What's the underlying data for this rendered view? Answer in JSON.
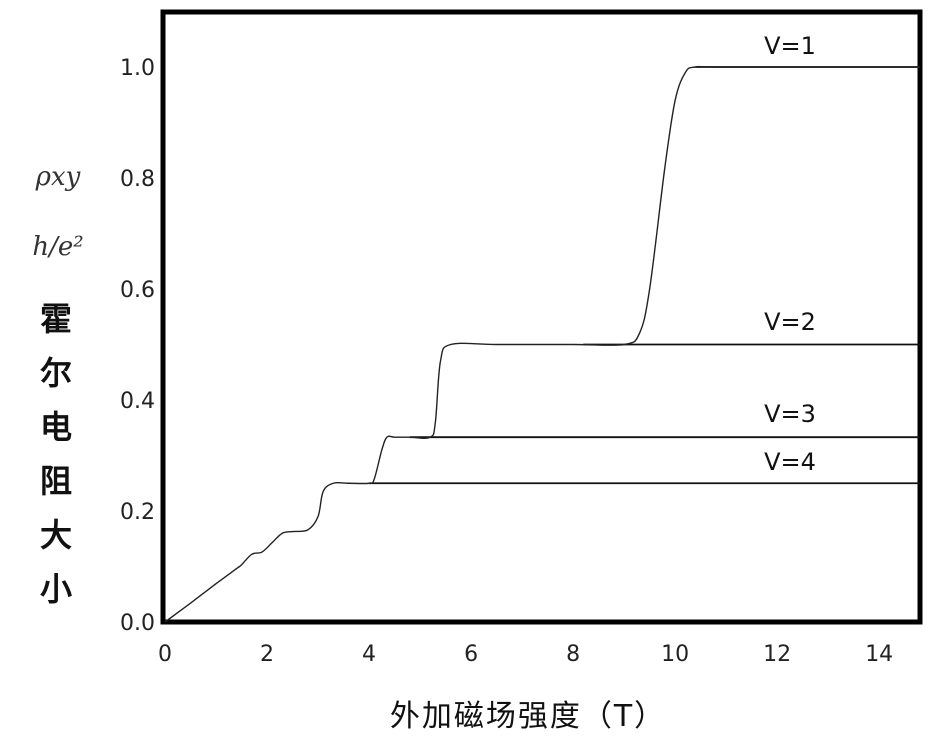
{
  "chart_data": {
    "type": "line",
    "xlabel": "外加磁场强度（T）",
    "ylabel_symbols": [
      "ρxy",
      "h/e²"
    ],
    "ylabel_chars": [
      "霍",
      "尔",
      "电",
      "阻",
      "大",
      "小"
    ],
    "xlim": [
      0,
      14.8
    ],
    "ylim": [
      0,
      1.1
    ],
    "x_ticks": [
      0,
      2,
      4,
      6,
      8,
      10,
      12,
      14
    ],
    "x_tick_labels": [
      "0",
      "2",
      "4",
      "6",
      "8",
      "10",
      "12",
      "14"
    ],
    "y_ticks": [
      0.0,
      0.2,
      0.4,
      0.6,
      0.8,
      1.0
    ],
    "y_tick_labels": [
      "0.0",
      "0.2",
      "0.4",
      "0.6",
      "0.8",
      "1.0"
    ],
    "grid": false,
    "series": [
      {
        "x": [
          0,
          0.5,
          1.0,
          1.4,
          1.5,
          1.7,
          1.9,
          2.1,
          2.3,
          2.5,
          2.8,
          3.0,
          3.1,
          3.3,
          3.6,
          4.0,
          4.1,
          4.25,
          4.35,
          4.5,
          4.8,
          5.2,
          5.3,
          5.4,
          5.6,
          6.5,
          8.0,
          9.0,
          9.3,
          9.5,
          9.8,
          10.0,
          10.2,
          10.4,
          11.0,
          14.8
        ],
        "y": [
          0.0,
          0.034,
          0.069,
          0.096,
          0.103,
          0.122,
          0.126,
          0.143,
          0.16,
          0.163,
          0.166,
          0.19,
          0.235,
          0.25,
          0.25,
          0.25,
          0.257,
          0.31,
          0.333,
          0.333,
          0.333,
          0.333,
          0.36,
          0.47,
          0.5,
          0.5,
          0.5,
          0.5,
          0.52,
          0.6,
          0.82,
          0.94,
          0.99,
          1.0,
          1.0,
          1.0
        ]
      }
    ],
    "plateaus": [
      {
        "label": "V=1",
        "y": 1.0,
        "x_start": 10.4,
        "x_end": 14.8
      },
      {
        "label": "V=2",
        "y": 0.5,
        "x_start": 8.2,
        "x_end": 14.8
      },
      {
        "label": "V=3",
        "y": 0.333,
        "x_start": 4.8,
        "x_end": 14.8
      },
      {
        "label": "V=4",
        "y": 0.25,
        "x_start": 4.0,
        "x_end": 14.8
      }
    ]
  }
}
